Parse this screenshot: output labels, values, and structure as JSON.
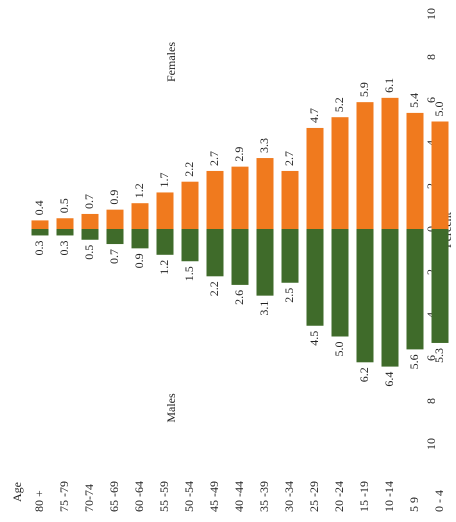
{
  "chart_data": {
    "type": "population-pyramid",
    "x_axis_label": "Age",
    "y_axis_label": "Percent",
    "categories": [
      "80 +",
      "75 -79",
      "70-74",
      "65 -69",
      "60 -64",
      "55 -59",
      "50 -54",
      "45 -49",
      "40 -44",
      "35 -39",
      "30 -34",
      "25 -29",
      "20 -24",
      "15 -19",
      "10 -14",
      "5 9",
      "0 - 4"
    ],
    "series": [
      {
        "name": "Females",
        "color": "#f07a1e",
        "values": [
          0.4,
          0.5,
          0.7,
          0.9,
          1.2,
          1.7,
          2.2,
          2.7,
          2.9,
          3.3,
          2.7,
          4.7,
          5.2,
          5.9,
          6.1,
          5.4,
          5.0
        ],
        "value_labels": [
          "0.4",
          "0.5",
          "0.7",
          "0.9",
          "1.2",
          "1.7",
          "2.2",
          "2.7",
          "2.9",
          "3.3",
          "2.7",
          "4.7",
          "5.2",
          "5.9",
          "6.1",
          "5.4",
          "5.0"
        ]
      },
      {
        "name": "Males",
        "color": "#3f6b2a",
        "values": [
          0.3,
          0.3,
          0.5,
          0.7,
          0.9,
          1.2,
          1.5,
          2.2,
          2.6,
          3.1,
          2.5,
          4.5,
          5.0,
          6.2,
          6.4,
          5.6,
          5.3
        ],
        "value_labels": [
          "0.3",
          "0.3",
          "0.5",
          "0.7",
          "0.9",
          "1.2",
          "1.5",
          "2.2",
          "2.6",
          "3.1",
          "2.5",
          "4.5",
          "5.0",
          "6.2",
          "6.4",
          "5.6",
          "5.3"
        ]
      }
    ],
    "ylim": [
      0,
      10
    ],
    "female_ticks": [
      0,
      2,
      4,
      6,
      8,
      10
    ],
    "male_ticks": [
      2,
      4,
      6,
      8,
      10
    ]
  }
}
